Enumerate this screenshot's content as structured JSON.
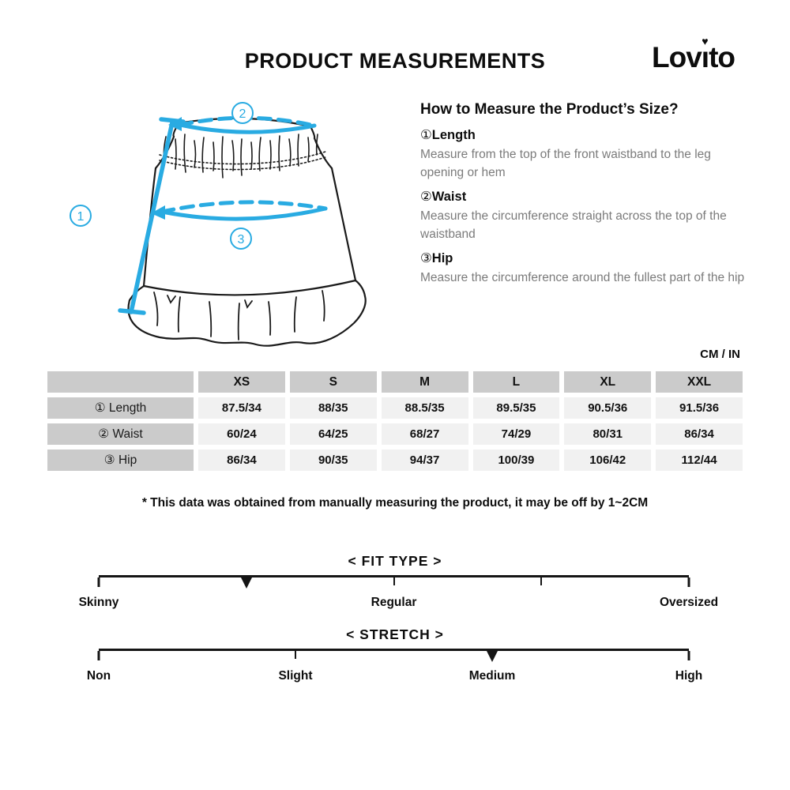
{
  "header": {
    "title": "PRODUCT MEASUREMENTS",
    "brand": {
      "name": "Lovito",
      "prefix": "Lov",
      "i": "ı",
      "heart_icon": "♥",
      "suffix": "to"
    }
  },
  "diagram": {
    "accent_color": "#29ABE2",
    "markers": [
      {
        "num": "1",
        "meaning": "Length"
      },
      {
        "num": "2",
        "meaning": "Waist"
      },
      {
        "num": "3",
        "meaning": "Hip"
      }
    ]
  },
  "how_to": {
    "heading": "How to Measure the Product’s Size?",
    "items": [
      {
        "num": "①",
        "name": "Length",
        "desc": "Measure from the top of the front waistband to the leg opening or hem"
      },
      {
        "num": "②",
        "name": "Waist",
        "desc": "Measure the circumference straight across the top of the waistband"
      },
      {
        "num": "③",
        "name": "Hip",
        "desc": "Measure the circumference around the fullest part of the hip"
      }
    ]
  },
  "units_label": "CM / IN",
  "table": {
    "columns": [
      "XS",
      "S",
      "M",
      "L",
      "XL",
      "XXL"
    ],
    "rows": [
      {
        "label": "① Length",
        "values": [
          "87.5/34",
          "88/35",
          "88.5/35",
          "89.5/35",
          "90.5/36",
          "91.5/36"
        ]
      },
      {
        "label": "② Waist",
        "values": [
          "60/24",
          "64/25",
          "68/27",
          "74/29",
          "80/31",
          "86/34"
        ]
      },
      {
        "label": "③ Hip",
        "values": [
          "86/34",
          "90/35",
          "94/37",
          "100/39",
          "106/42",
          "112/44"
        ]
      }
    ]
  },
  "note": "* This data was obtained from manually measuring the product, it may be off by 1~2CM",
  "fit_type": {
    "heading": "< FIT TYPE >",
    "tick_percents": [
      0,
      25,
      50,
      75,
      100
    ],
    "marker_percent": 25,
    "selected": "between Skinny and Regular",
    "labels": [
      {
        "text": "Skinny",
        "percent": 0
      },
      {
        "text": "Regular",
        "percent": 50
      },
      {
        "text": "Oversized",
        "percent": 100
      }
    ]
  },
  "stretch": {
    "heading": "< STRETCH >",
    "tick_percents": [
      0,
      33.33,
      66.67,
      100
    ],
    "marker_percent": 66.67,
    "selected": "Medium",
    "labels": [
      {
        "text": "Non",
        "percent": 0
      },
      {
        "text": "Slight",
        "percent": 33.33
      },
      {
        "text": "Medium",
        "percent": 66.67
      },
      {
        "text": "High",
        "percent": 100
      }
    ]
  }
}
